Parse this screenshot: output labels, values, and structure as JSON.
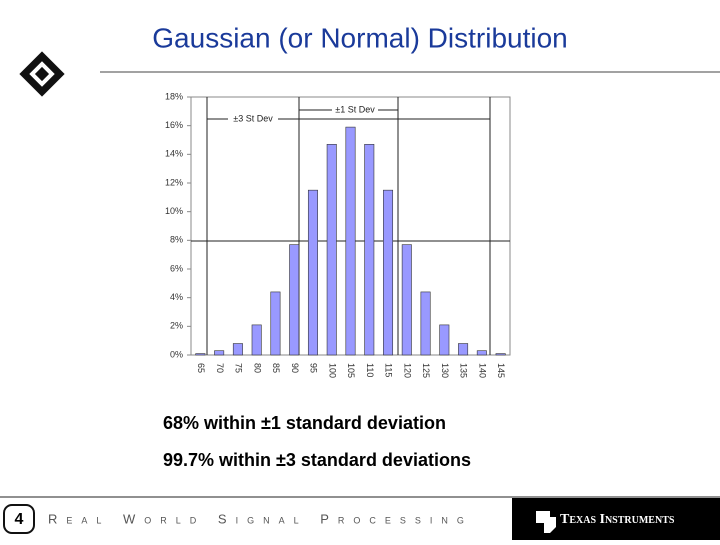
{
  "chart_data": {
    "type": "bar",
    "title": "Gaussian (or Normal) Distribution",
    "categories": [
      "65",
      "70",
      "75",
      "80",
      "85",
      "90",
      "95",
      "100",
      "105",
      "110",
      "115",
      "120",
      "125",
      "130",
      "135",
      "140",
      "145"
    ],
    "values": [
      0.1,
      0.3,
      0.8,
      2.1,
      4.4,
      7.7,
      11.5,
      14.7,
      15.9,
      14.7,
      11.5,
      7.7,
      4.4,
      2.1,
      0.8,
      0.3,
      0.1
    ],
    "color": "#9999ff",
    "ylim": [
      0,
      18
    ],
    "yticks": [
      {
        "value": 0,
        "label": "0%"
      },
      {
        "value": 2,
        "label": "2%"
      },
      {
        "value": 4,
        "label": "4%"
      },
      {
        "value": 6,
        "label": "6%"
      },
      {
        "value": 8,
        "label": "8%"
      },
      {
        "value": 10,
        "label": "10%"
      },
      {
        "value": 12,
        "label": "12%"
      },
      {
        "value": 14,
        "label": "14%"
      },
      {
        "value": 16,
        "label": "16%"
      },
      {
        "value": 18,
        "label": "18%"
      }
    ],
    "annotations": [
      "±3 St Dev",
      "±1 St Dev"
    ]
  },
  "bullets": [
    "68% within ±1  standard deviation",
    "99.7% within ±3 standard deviations"
  ],
  "footer": {
    "page": "4",
    "tagline": "Real World Signal Processing",
    "company": "Texas Instruments"
  }
}
